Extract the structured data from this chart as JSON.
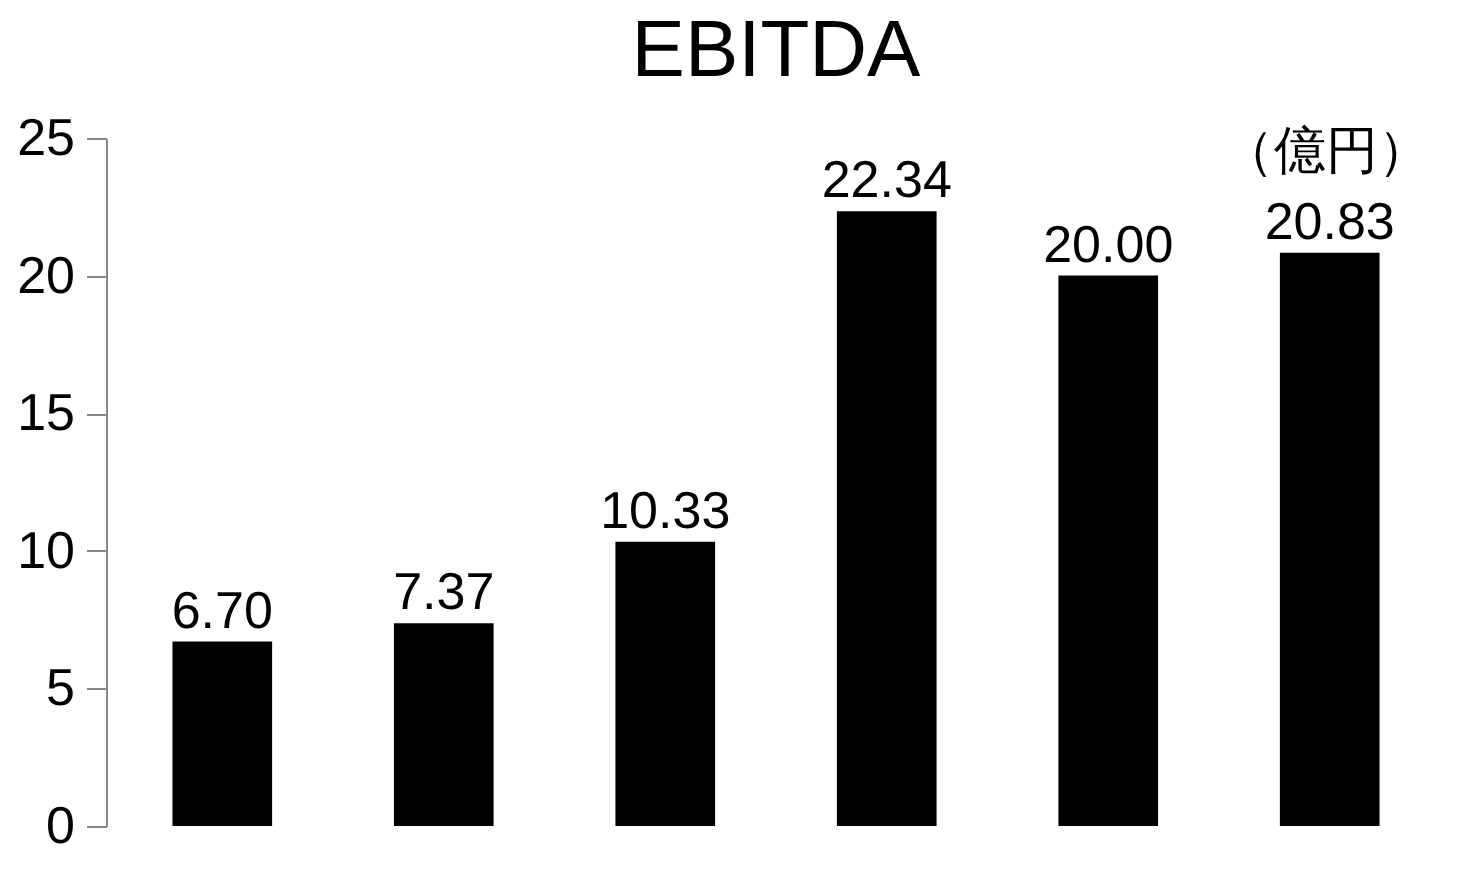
{
  "chart_data": {
    "type": "bar",
    "title": "EBITDA",
    "categories": [
      null,
      null,
      null,
      null,
      null,
      null
    ],
    "values": [
      6.7,
      7.37,
      10.33,
      22.34,
      20.0,
      20.83
    ],
    "value_labels": [
      "6.70",
      "7.37",
      "10.33",
      "22.34",
      "20.00",
      "20.83"
    ],
    "color": "#000000",
    "ylim": [
      0,
      25
    ],
    "yticks": [
      0,
      5,
      10,
      15,
      20,
      25
    ],
    "grid": false,
    "annotations": [
      "（億円）"
    ]
  }
}
